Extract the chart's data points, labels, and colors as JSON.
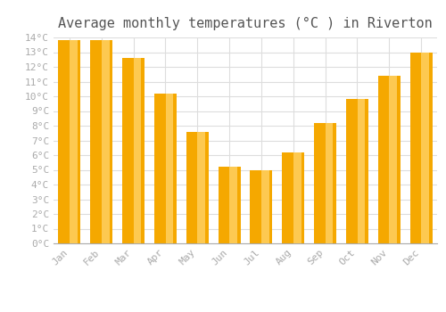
{
  "title": "Average monthly temperatures (°C ) in Riverton",
  "months": [
    "Jan",
    "Feb",
    "Mar",
    "Apr",
    "May",
    "Jun",
    "Jul",
    "Aug",
    "Sep",
    "Oct",
    "Nov",
    "Dec"
  ],
  "values": [
    13.8,
    13.8,
    12.6,
    10.2,
    7.6,
    5.2,
    5.0,
    6.2,
    8.2,
    9.8,
    11.4,
    13.0
  ],
  "bar_color_dark": "#F5A800",
  "bar_color_light": "#FFD060",
  "ylim": [
    0,
    14
  ],
  "ytick_step": 1,
  "background_color": "#ffffff",
  "grid_color": "#dddddd",
  "title_fontsize": 11,
  "tick_fontsize": 8,
  "font_family": "monospace",
  "tick_color": "#aaaaaa",
  "bar_width": 0.7
}
